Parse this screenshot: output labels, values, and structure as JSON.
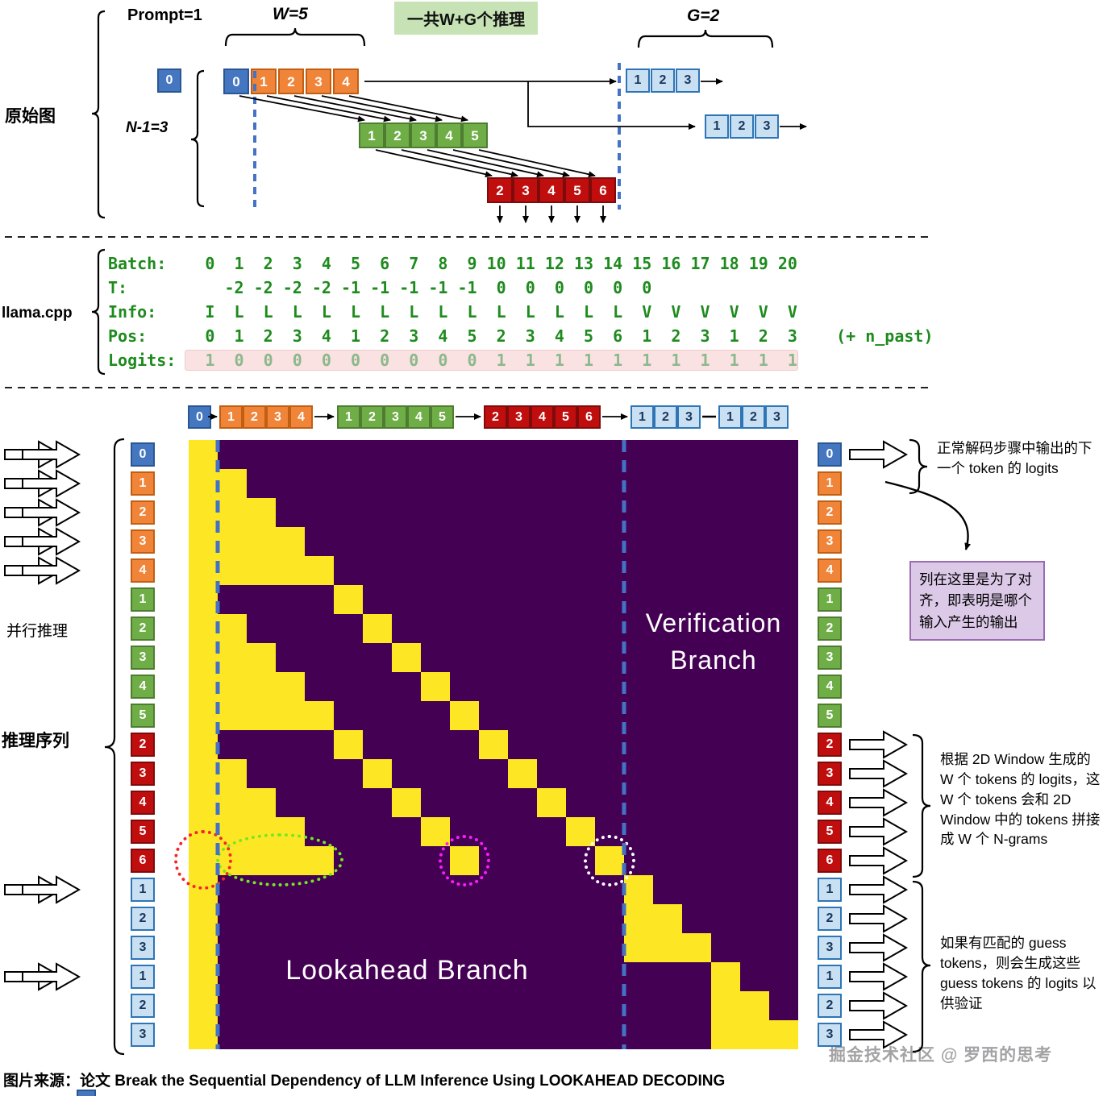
{
  "top": {
    "section_label": "原始图",
    "prompt_label": "Prompt=1",
    "w_label": "W=5",
    "banner": "一共W+G个推理",
    "g_label": "G=2",
    "n_label": "N-1=3",
    "prompt_token": "0",
    "window_row": [
      "0",
      "1",
      "2",
      "3",
      "4"
    ],
    "green_row": [
      "1",
      "2",
      "3",
      "4",
      "5"
    ],
    "red_row": [
      "2",
      "3",
      "4",
      "5",
      "6"
    ],
    "guess_row_1": [
      "1",
      "2",
      "3"
    ],
    "guess_row_2": [
      "1",
      "2",
      "3"
    ]
  },
  "llama": {
    "label": "llama.cpp",
    "rows": [
      {
        "label": "Batch:",
        "values": "  0  1  2  3  4  5  6  7  8  9 10 11 12 13 14 15 16 17 18 19 20"
      },
      {
        "label": "T:",
        "values": "    -2 -2 -2 -2 -1 -1 -1 -1 -1  0  0  0  0  0  0"
      },
      {
        "label": "Info:",
        "values": "  I  L  L  L  L  L  L  L  L  L  L  L  L  L  L  V  V  V  V  V  V"
      },
      {
        "label": "Pos:",
        "values": "  0  1  2  3  4  1  2  3  4  5  2  3  4  5  6  1  2  3  1  2  3",
        "suffix": "(+ n_past)"
      },
      {
        "label": "Logits:",
        "values": "  1  0  0  0  0  0  0  0  0  0  1  1  1  1  1  1  1  1  1  1  1",
        "highlight": true
      }
    ]
  },
  "matrix": {
    "header_groups": [
      {
        "color": "blue",
        "tokens": [
          "0"
        ]
      },
      {
        "color": "orange",
        "tokens": [
          "1",
          "2",
          "3",
          "4"
        ]
      },
      {
        "color": "green",
        "tokens": [
          "1",
          "2",
          "3",
          "4",
          "5"
        ]
      },
      {
        "color": "red",
        "tokens": [
          "2",
          "3",
          "4",
          "5",
          "6"
        ]
      },
      {
        "color": "lightblue",
        "tokens": [
          "1",
          "2",
          "3"
        ]
      },
      {
        "color": "lightblue",
        "tokens": [
          "1",
          "2",
          "3"
        ]
      }
    ],
    "row_tokens": [
      [
        "0",
        "blue"
      ],
      [
        "1",
        "orange"
      ],
      [
        "2",
        "orange"
      ],
      [
        "3",
        "orange"
      ],
      [
        "4",
        "orange"
      ],
      [
        "1",
        "green"
      ],
      [
        "2",
        "green"
      ],
      [
        "3",
        "green"
      ],
      [
        "4",
        "green"
      ],
      [
        "5",
        "green"
      ],
      [
        "2",
        "red"
      ],
      [
        "3",
        "red"
      ],
      [
        "4",
        "red"
      ],
      [
        "5",
        "red"
      ],
      [
        "6",
        "red"
      ],
      [
        "1",
        "lightblue"
      ],
      [
        "2",
        "lightblue"
      ],
      [
        "3",
        "lightblue"
      ],
      [
        "1",
        "lightblue"
      ],
      [
        "2",
        "lightblue"
      ],
      [
        "3",
        "lightblue"
      ]
    ],
    "cells": [
      [
        0
      ],
      [
        0,
        1
      ],
      [
        0,
        1,
        2
      ],
      [
        0,
        1,
        2,
        3
      ],
      [
        0,
        1,
        2,
        3,
        4
      ],
      [
        0,
        5
      ],
      [
        0,
        1,
        6
      ],
      [
        0,
        1,
        2,
        7
      ],
      [
        0,
        1,
        2,
        3,
        8
      ],
      [
        0,
        1,
        2,
        3,
        4,
        9
      ],
      [
        0,
        5,
        10
      ],
      [
        0,
        1,
        6,
        11
      ],
      [
        0,
        1,
        2,
        7,
        12
      ],
      [
        0,
        1,
        2,
        3,
        8,
        13
      ],
      [
        0,
        1,
        2,
        3,
        4,
        9,
        14
      ],
      [
        0,
        15
      ],
      [
        0,
        15,
        16
      ],
      [
        0,
        15,
        16,
        17
      ],
      [
        0,
        18
      ],
      [
        0,
        18,
        19
      ],
      [
        0,
        18,
        19,
        20
      ]
    ],
    "lookahead_label": "Lookahead Branch",
    "verification_label": "Verification Branch"
  },
  "left": {
    "parallel_label": "并行推理",
    "sequence_label": "推理序列"
  },
  "right": {
    "note_top": "正常解码步骤中输出的下一个 token 的 logits",
    "note_box": "列在这里是为了对齐，即表明是哪个输入产生的输出",
    "note_window": "根据 2D Window 生成的 W 个 tokens 的 logits，这 W 个 tokens 会和 2D Window 中的 tokens 拼接成 W 个 N-grams",
    "note_guess": "如果有匹配的 guess tokens，则会生成这些 guess tokens 的 logits 以供验证"
  },
  "footer": {
    "caption": "图片来源：论文 Break the Sequential Dependency of LLM Inference Using LOOKAHEAD DECODING",
    "watermark": "掘金技术社区 @ 罗西的思考"
  },
  "colors": {
    "prompt_blue": "#4577C0",
    "window_orange": "#F08438",
    "level2_green": "#6FAD47",
    "level3_red": "#C00E0E",
    "guess_lightblue": "#C9DFF2",
    "mask_purple": "#440154",
    "mask_yellow": "#FDE725",
    "dashed_blue": "#4472C4",
    "mono_green": "#1E8B1E",
    "banner_green": "#C7E3B5",
    "note_purple_bg": "#DCC9E8"
  }
}
